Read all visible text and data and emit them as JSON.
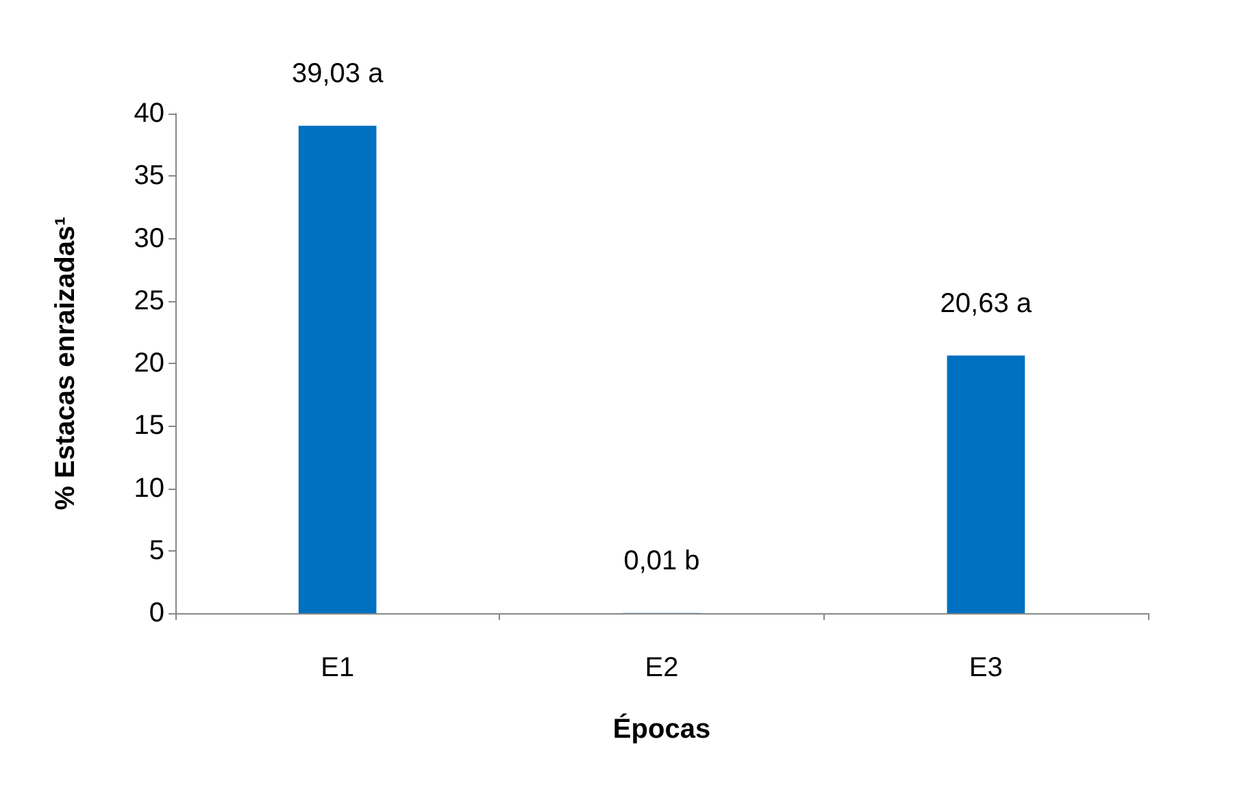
{
  "chart_data": {
    "type": "bar",
    "xlabel": "Épocas",
    "ylabel": "% Estacas enraizadas¹",
    "categories": [
      "E1",
      "E2",
      "E3"
    ],
    "values": [
      39.03,
      0.01,
      20.63
    ],
    "color": "#0070c0",
    "value_labels": [
      "39,03 a",
      "0,01 b",
      "20,63 a"
    ],
    "ylim": [
      0,
      40
    ],
    "yticks": [
      0,
      5,
      10,
      15,
      20,
      25,
      30,
      35,
      40
    ],
    "grid": false
  }
}
